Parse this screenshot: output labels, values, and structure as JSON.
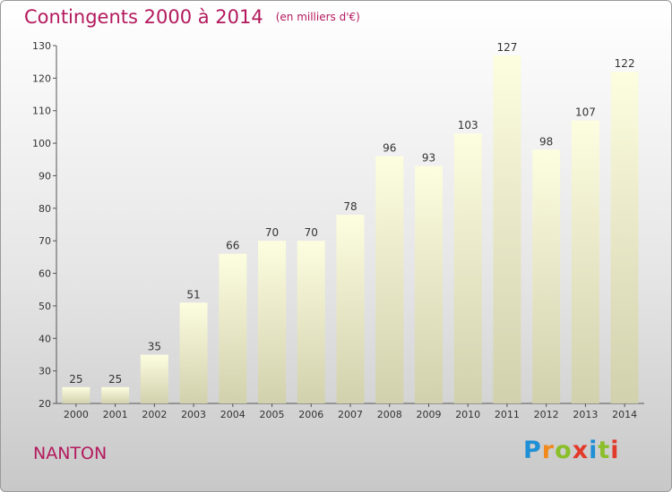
{
  "header": {
    "title": "Contingents 2000 à 2014",
    "unit": "(en milliers d'€)"
  },
  "footer": {
    "place": "NANTON",
    "brand": [
      "P",
      "r",
      "o",
      "x",
      "i",
      "t",
      "i"
    ]
  },
  "colors": {
    "title": "#b3195d",
    "bar_top": "#fdfde0",
    "bar_bottom": "#d1d1ad",
    "brand": [
      "#1f8fd6",
      "#f08a1c",
      "#8bbf2a",
      "#e23a2a",
      "#1f8fd6",
      "#8bbf2a",
      "#e23a2a"
    ]
  },
  "chart_data": {
    "type": "bar",
    "categories": [
      "2000",
      "2001",
      "2002",
      "2003",
      "2004",
      "2005",
      "2006",
      "2007",
      "2008",
      "2009",
      "2010",
      "2011",
      "2012",
      "2013",
      "2014"
    ],
    "values": [
      25,
      25,
      35,
      51,
      66,
      70,
      70,
      78,
      96,
      93,
      103,
      127,
      98,
      107,
      122
    ],
    "ylim": [
      20,
      130
    ],
    "yticks": [
      20,
      30,
      40,
      50,
      60,
      70,
      80,
      90,
      100,
      110,
      120,
      130
    ],
    "grid": false
  }
}
